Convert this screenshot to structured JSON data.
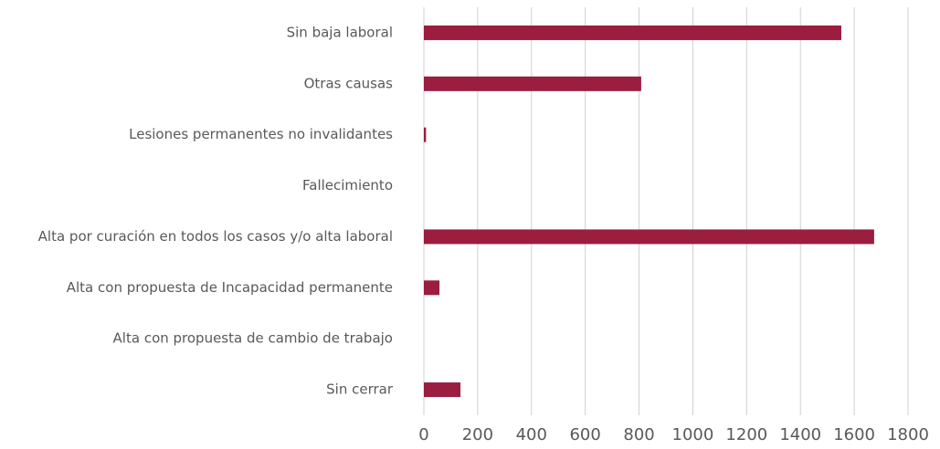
{
  "chart_data": {
    "type": "barh",
    "categories": [
      "Sin baja laboral",
      "Otras causas",
      "Lesiones permanentes no invalidantes",
      "Fallecimiento",
      "Alta por curación en todos los casos y/o alta laboral",
      "Alta con propuesta de Incapacidad permanente",
      "Alta con propuesta de cambio de trabajo",
      "Sin cerrar"
    ],
    "values": [
      1552,
      808,
      8,
      0,
      1674,
      58,
      0,
      136
    ],
    "color": "#9b1d40",
    "xlim": [
      0,
      1800
    ],
    "xticks": [
      0,
      200,
      400,
      600,
      800,
      1000,
      1200,
      1400,
      1600,
      1800
    ],
    "grid": true
  }
}
